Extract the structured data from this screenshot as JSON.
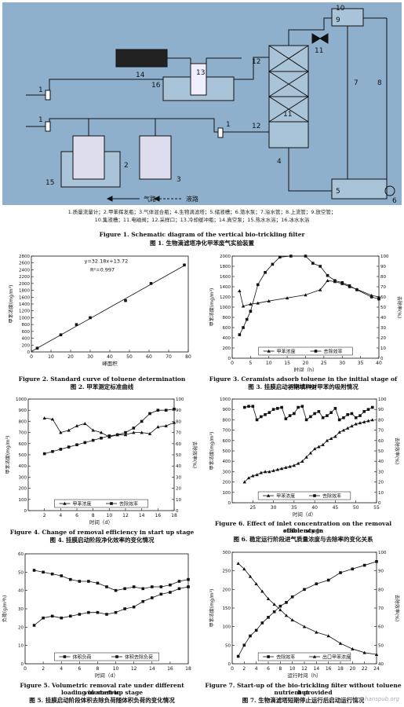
{
  "schematic": {
    "numbers": [
      "1",
      "1",
      "1",
      "2",
      "3",
      "4",
      "5",
      "6",
      "7",
      "8",
      "9",
      "10",
      "11",
      "12",
      "12",
      "13",
      "14",
      "15",
      "16",
      "11"
    ],
    "arrow_gas": "气路",
    "arrow_liquid": "液路",
    "legend_line1": "1.质量流量计；2.甲苯挥发瓶；3.气体混合瓶；4.生物滴滤塔；5.储液槽；6.潜水泵；7.溢水管；8.上流管；9.放空管；",
    "legend_line2": "10.集液槽；11.电磁阀；12.采样口；13.冷却缓冲瓶；14.真空泵；15.热水水浴；16.冰水水浴",
    "caption_en": "Figure 1. Schematic diagram of the vertical bio-trickling filter",
    "caption_zh": "图 1. 生物滴滤塔净化甲苯废气实验装置"
  },
  "captions": {
    "fig2_en": "Figure 2. Standard curve of toluene determination",
    "fig2_zh": "图 2. 甲苯测定标准曲线",
    "fig3_en": "Figure 3. Ceramists adsorb toluene in the initial stage of start-up",
    "fig3_zh": "图 3. 挂膜启动初期填料对甲苯的吸附情况",
    "fig4_en": "Figure 4. Change of removal efficiency in start up stage",
    "fig4_zh": "图 4. 挂膜启动阶段净化效率的变化情况",
    "fig6_en1": "Figure 6. Effect of inlet concentration on the removal efficiency in",
    "fig6_en2": "stable stage",
    "fig6_zh": "图 6. 稳定运行阶段进气质量浓度与去除率的变化关系",
    "fig5_en1": "Figure 5. Volumetric removal rate under different volumetric",
    "fig5_en2": "loading in start-up stage",
    "fig5_zh": "图 5. 挂膜启动阶段体积去除负荷随体积负荷的变化情况",
    "fig7_en1": "Figure 7. Start-up of the bio-trickling filter without toluene but",
    "fig7_en2": "nutrient provided",
    "fig7_zh": "图 7. 生物滴滤塔短期停止运行后启动运行情况"
  },
  "watermark": "www.hanspub.org",
  "chart_data": [
    {
      "id": "fig2",
      "type": "scatter",
      "xlabel": "峰面积",
      "ylabel": "甲苯浓度(mg/m³)",
      "xlim": [
        0,
        80
      ],
      "ylim": [
        0,
        2800
      ],
      "xticks": [
        0,
        10,
        20,
        30,
        40,
        50,
        60,
        70,
        80
      ],
      "yticks": [
        0,
        200,
        400,
        600,
        800,
        1000,
        1200,
        1400,
        1600,
        1800,
        2000,
        2200,
        2400,
        2600,
        2800
      ],
      "equation": "y=32.18x+13.72",
      "r2": "R²=0.997",
      "x": [
        3,
        15,
        23,
        30,
        48,
        61,
        78
      ],
      "y": [
        110,
        500,
        800,
        1000,
        1500,
        2000,
        2540
      ]
    },
    {
      "id": "fig3",
      "type": "line",
      "xlabel": "时间（h）",
      "ylabel": "甲苯浓度(mg/m³)",
      "y2label": "去除率(%)",
      "xlim": [
        0,
        40
      ],
      "ylim": [
        0,
        2000
      ],
      "y2lim": [
        0,
        100
      ],
      "xticks": [
        0,
        5,
        10,
        15,
        20,
        25,
        30,
        35,
        40
      ],
      "yticks": [
        0,
        200,
        400,
        600,
        800,
        1000,
        1200,
        1400,
        1600,
        1800,
        2000
      ],
      "y2ticks": [
        0,
        10,
        20,
        30,
        40,
        50,
        60,
        70,
        80,
        90,
        100
      ],
      "legend": [
        "甲苯浓度",
        "去除效率"
      ],
      "series": [
        {
          "name": "甲苯浓度",
          "axis": "left",
          "marker": "triangle",
          "x": [
            2,
            3,
            5,
            7,
            10,
            15,
            20,
            24,
            26,
            28,
            30,
            32,
            34,
            38,
            40
          ],
          "y": [
            1320,
            1020,
            1060,
            1080,
            1120,
            1180,
            1240,
            1340,
            1520,
            1500,
            1460,
            1400,
            1350,
            1230,
            1200
          ]
        },
        {
          "name": "去除效率",
          "axis": "right",
          "marker": "square",
          "x": [
            2,
            3,
            4,
            5,
            7,
            9,
            11,
            13,
            16,
            20,
            22,
            24,
            26,
            28,
            30,
            32,
            34,
            38,
            40
          ],
          "y": [
            23,
            30,
            38,
            46,
            72,
            84,
            92,
            99,
            100,
            100,
            93,
            90,
            81,
            76,
            74,
            71,
            67,
            60,
            58
          ]
        }
      ]
    },
    {
      "id": "fig4",
      "type": "line",
      "xlabel": "时间（d）",
      "ylabel": "甲苯浓度(mg/m³)",
      "y2label": "去除效率(%)",
      "xlim": [
        0,
        18
      ],
      "ylim": [
        0,
        1000
      ],
      "y2lim": [
        0,
        100
      ],
      "xticks": [
        2,
        4,
        6,
        8,
        10,
        12,
        14,
        16,
        18
      ],
      "yticks": [
        0,
        100,
        200,
        300,
        400,
        500,
        600,
        700,
        800,
        900,
        1000
      ],
      "y2ticks": [
        0,
        10,
        20,
        30,
        40,
        50,
        60,
        70,
        80,
        90,
        100
      ],
      "legend": [
        "甲苯浓度",
        "去除效率"
      ],
      "series": [
        {
          "name": "甲苯浓度",
          "axis": "left",
          "marker": "triangle",
          "x": [
            2,
            3,
            4,
            5,
            6,
            7,
            8,
            9,
            10,
            11,
            12,
            13,
            14,
            15,
            16,
            17,
            18
          ],
          "y": [
            830,
            820,
            700,
            720,
            760,
            780,
            720,
            700,
            660,
            680,
            680,
            700,
            700,
            690,
            750,
            760,
            790
          ]
        },
        {
          "name": "去除效率",
          "axis": "right",
          "marker": "square",
          "x": [
            2,
            3,
            4,
            5,
            6,
            7,
            8,
            9,
            10,
            11,
            12,
            13,
            14,
            15,
            16,
            17,
            18
          ],
          "y": [
            51,
            53,
            55,
            57,
            59,
            61,
            63,
            65,
            67,
            68,
            70,
            74,
            80,
            87,
            90,
            90,
            91
          ]
        }
      ]
    },
    {
      "id": "fig6",
      "type": "line",
      "xlabel": "时间（d）",
      "ylabel": "甲苯浓度(mg/m³)",
      "y2label": "去除效率(%)",
      "xlim": [
        20,
        55
      ],
      "ylim": [
        0,
        1000
      ],
      "y2lim": [
        0,
        100
      ],
      "xticks": [
        25,
        30,
        35,
        40,
        45,
        50,
        55
      ],
      "yticks": [
        0,
        100,
        200,
        300,
        400,
        500,
        600,
        700,
        800,
        900,
        1000
      ],
      "y2ticks": [
        0,
        10,
        20,
        30,
        40,
        50,
        60,
        70,
        80,
        90,
        100
      ],
      "legend": [
        "甲苯浓度",
        "去除效率"
      ],
      "series": [
        {
          "name": "甲苯浓度",
          "axis": "left",
          "marker": "triangle",
          "x": [
            23,
            24,
            25,
            26,
            27,
            28,
            29,
            30,
            31,
            32,
            33,
            34,
            35,
            36,
            37,
            38,
            39,
            40,
            41,
            42,
            43,
            44,
            45,
            46,
            47,
            48,
            49,
            50,
            51,
            52,
            53,
            54
          ],
          "y": [
            200,
            240,
            260,
            270,
            290,
            300,
            300,
            310,
            320,
            330,
            340,
            350,
            360,
            380,
            400,
            440,
            480,
            520,
            540,
            560,
            600,
            620,
            640,
            680,
            700,
            720,
            740,
            760,
            770,
            780,
            790,
            800
          ]
        },
        {
          "name": "去除效率",
          "axis": "right",
          "marker": "square",
          "x": [
            23,
            24,
            25,
            26,
            27,
            28,
            29,
            30,
            31,
            32,
            33,
            34,
            35,
            36,
            37,
            38,
            39,
            40,
            41,
            42,
            43,
            44,
            45,
            46,
            47,
            48,
            49,
            50,
            51,
            52,
            53,
            54
          ],
          "y": [
            92,
            93,
            93,
            80,
            83,
            85,
            87,
            90,
            91,
            92,
            81,
            84,
            86,
            92,
            93,
            80,
            83,
            86,
            88,
            82,
            84,
            87,
            91,
            80,
            82,
            85,
            86,
            82,
            84,
            88,
            90,
            92
          ]
        }
      ]
    },
    {
      "id": "fig5",
      "type": "line",
      "xlabel": "时间（d）",
      "ylabel": "负荷(g/m³h)",
      "xlim": [
        0,
        18
      ],
      "ylim": [
        0,
        60
      ],
      "xticks": [
        0,
        2,
        4,
        6,
        8,
        10,
        12,
        14,
        16,
        18
      ],
      "yticks": [
        0,
        10,
        20,
        30,
        40,
        50,
        60
      ],
      "legend": [
        "体积负荷",
        "体积去除负荷"
      ],
      "series": [
        {
          "name": "体积负荷",
          "axis": "left",
          "marker": "square",
          "x": [
            1,
            2,
            3,
            4,
            5,
            6,
            7,
            8,
            9,
            10,
            11,
            12,
            13,
            14,
            15,
            16,
            17,
            18
          ],
          "y": [
            51,
            50,
            49,
            48,
            46,
            45,
            45,
            44,
            42,
            40,
            41,
            42,
            41,
            42,
            42,
            43,
            45,
            46
          ]
        },
        {
          "name": "体积去除负荷",
          "axis": "left",
          "marker": "square",
          "x": [
            1,
            2,
            3,
            4,
            5,
            6,
            7,
            8,
            9,
            10,
            11,
            12,
            13,
            14,
            15,
            16,
            17,
            18
          ],
          "y": [
            21,
            25,
            26,
            25,
            26,
            27,
            28,
            28,
            27,
            28,
            30,
            31,
            34,
            36,
            38,
            39,
            41,
            42
          ]
        }
      ]
    },
    {
      "id": "fig7",
      "type": "line",
      "xlabel": "运行时间（h）",
      "ylabel": "甲苯浓度(mg/m³)",
      "y2label": "去除效率(%)",
      "xlim": [
        0,
        24
      ],
      "ylim": [
        0,
        300
      ],
      "y2lim": [
        40,
        100
      ],
      "xticks": [
        0,
        2,
        4,
        6,
        8,
        10,
        12,
        14,
        16,
        18,
        20,
        22,
        24
      ],
      "yticks": [
        0,
        50,
        100,
        150,
        200,
        250,
        300
      ],
      "y2ticks": [
        40,
        50,
        60,
        70,
        80,
        90,
        100
      ],
      "legend": [
        "去除效率",
        "出口甲苯浓度"
      ],
      "series": [
        {
          "name": "去除效率",
          "axis": "right",
          "marker": "square",
          "x": [
            1,
            2,
            3,
            4,
            5,
            6,
            7,
            8,
            9,
            10,
            12,
            14,
            16,
            18,
            20,
            22,
            24
          ],
          "y": [
            44,
            50,
            55,
            58,
            62,
            65,
            68,
            71,
            73,
            76,
            80,
            83,
            85,
            89,
            91,
            93,
            95
          ]
        },
        {
          "name": "出口甲苯浓度",
          "axis": "left",
          "marker": "triangle",
          "x": [
            1,
            2,
            3,
            4,
            5,
            6,
            7,
            8,
            9,
            10,
            12,
            14,
            16,
            18,
            20,
            22,
            24
          ],
          "y": [
            270,
            255,
            235,
            215,
            195,
            175,
            160,
            145,
            130,
            118,
            100,
            85,
            75,
            55,
            40,
            30,
            25
          ]
        }
      ]
    }
  ]
}
